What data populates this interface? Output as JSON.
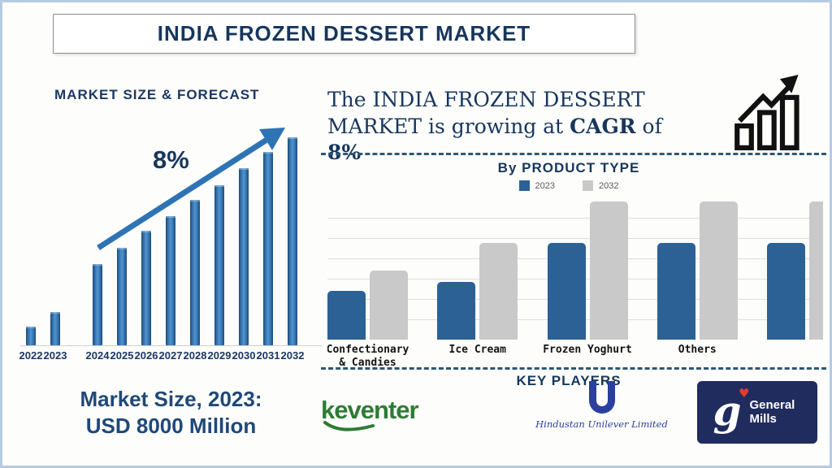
{
  "header": {
    "title": "INDIA FROZEN DESSERT MARKET"
  },
  "forecast": {
    "title": "MARKET SIZE & FORECAST",
    "growth_annotation": "8%",
    "market_size_line1": "Market Size, 2023:",
    "market_size_line2": "USD 8000 Million"
  },
  "cagr_statement": {
    "text_normal1": "The INDIA FROZEN DESSERT MARKET is growing at ",
    "text_bold1": "CAGR",
    "text_normal2": " of ",
    "text_bold2": "8%"
  },
  "product_section": {
    "title": "By PRODUCT TYPE"
  },
  "key_players": {
    "title": "KEY PLAYERS",
    "players": [
      {
        "name": "Keventer",
        "wordmark": "keventer",
        "color": "#2E7B34"
      },
      {
        "name": "Hindustan Unilever Limited",
        "color": "#2B3F9E"
      },
      {
        "name": "General Mills",
        "color": "#202B5E",
        "heart_color": "#E03C31"
      }
    ]
  },
  "colors": {
    "navy_text": "#16365C",
    "arrow_blue": "#2E74B5",
    "bar_blue_2023": "#2B6194",
    "bar_gray_2032": "#C9C9C9",
    "dashed_line": "#2F5773",
    "frame_border": "#B5CBE3"
  },
  "chart_data": [
    {
      "type": "bar",
      "title": "MARKET SIZE & FORECAST",
      "categories": [
        "2022",
        "2023",
        "2024",
        "2025",
        "2026",
        "2027",
        "2028",
        "2029",
        "2030",
        "2031",
        "2032"
      ],
      "values": [
        9,
        16,
        39,
        47,
        55,
        62,
        70,
        77,
        85,
        93,
        100
      ],
      "xlabel": "",
      "ylabel": "",
      "value_units": "relative bar height, % of tallest bar (no y-axis shown)",
      "annotation": "8% growth arrow over bars",
      "known_value": "2023 market size = USD 8000 Million",
      "bar_color": "#2E75B6",
      "grid": "off",
      "note": "last year label 2032 is clipped at the right edge"
    },
    {
      "type": "bar",
      "title": "By PRODUCT TYPE",
      "categories": [
        "Confectionary & Candies",
        "Ice Cream",
        "Frozen Yoghurt",
        "Others",
        ""
      ],
      "series": [
        {
          "name": "2023",
          "color": "#2B6194",
          "values": [
            35,
            42,
            70,
            70,
            70
          ]
        },
        {
          "name": "2032",
          "color": "#C9C9C9",
          "values": [
            50,
            70,
            100,
            100,
            100
          ]
        }
      ],
      "value_units": "relative bar height, % of tallest bar (no y-axis shown)",
      "legend_position": "top",
      "grid": "horizontal",
      "note": "fifth unlabeled bar pair is clipped at the right edge"
    }
  ]
}
